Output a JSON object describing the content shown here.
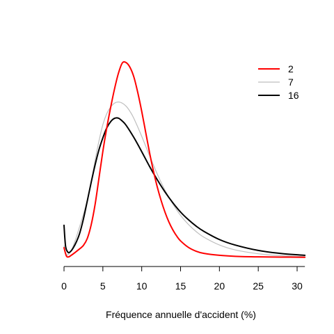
{
  "chart_data": {
    "type": "line",
    "title": "",
    "xlabel": "Fréquence annuelle d'accident (%)",
    "ylabel": "",
    "xlim": [
      0,
      31
    ],
    "ylim": [
      0,
      0.1
    ],
    "y_axis_shown": false,
    "grid": false,
    "legend_position": "top-right",
    "x_ticks": [
      0,
      5,
      10,
      15,
      20,
      25,
      30
    ],
    "series": [
      {
        "name": "2",
        "color": "#ff0000",
        "x": [
          0,
          0.3,
          0.6,
          1,
          1.5,
          2,
          2.5,
          3,
          3.5,
          4,
          4.5,
          5,
          5.5,
          6,
          6.5,
          7,
          7.5,
          8,
          8.5,
          9,
          9.5,
          10,
          10.5,
          11,
          11.5,
          12,
          12.5,
          13,
          13.5,
          14,
          14.5,
          15,
          16,
          17,
          18,
          20,
          22,
          25,
          28,
          31
        ],
        "y": [
          0.005,
          0.0008,
          0.0003,
          0.0013,
          0.0028,
          0.0044,
          0.0062,
          0.0098,
          0.0168,
          0.0272,
          0.0408,
          0.0545,
          0.0665,
          0.077,
          0.0865,
          0.0945,
          0.0998,
          0.1,
          0.0975,
          0.0925,
          0.0845,
          0.075,
          0.0645,
          0.054,
          0.0445,
          0.0362,
          0.0292,
          0.0232,
          0.0182,
          0.0142,
          0.011,
          0.0085,
          0.0052,
          0.0032,
          0.0021,
          0.0011,
          0.0006,
          0.0003,
          0.0002,
          0.0001
        ]
      },
      {
        "name": "7",
        "color": "#bebebe",
        "x": [
          0,
          0.3,
          0.6,
          1,
          1.5,
          2,
          2.5,
          3,
          3.5,
          4,
          4.5,
          5,
          5.5,
          6,
          6.5,
          7,
          7.5,
          8,
          8.5,
          9,
          10,
          11,
          12,
          13,
          14,
          15,
          16,
          17,
          18,
          20,
          22,
          25,
          28,
          31
        ],
        "y": [
          0.006,
          0.0015,
          0.0018,
          0.0041,
          0.0094,
          0.0157,
          0.0222,
          0.0295,
          0.0388,
          0.0498,
          0.0598,
          0.0682,
          0.0738,
          0.0772,
          0.0792,
          0.0798,
          0.0792,
          0.0776,
          0.0749,
          0.0713,
          0.0622,
          0.0523,
          0.0428,
          0.0345,
          0.0275,
          0.0216,
          0.017,
          0.0133,
          0.0104,
          0.0064,
          0.0039,
          0.0019,
          0.0009,
          0.0004
        ]
      },
      {
        "name": "16",
        "color": "#000000",
        "x": [
          0,
          0.2,
          0.5,
          0.8,
          1.2,
          1.6,
          2,
          2.5,
          3,
          3.5,
          4,
          4.5,
          5,
          5.5,
          6,
          6.5,
          7,
          7.5,
          8,
          9,
          10,
          11,
          12,
          13,
          14,
          15,
          16,
          17,
          18,
          20,
          22,
          25,
          28,
          31
        ],
        "y": [
          0.0165,
          0.0058,
          0.0027,
          0.0029,
          0.005,
          0.0081,
          0.0122,
          0.0198,
          0.0291,
          0.0386,
          0.0475,
          0.0553,
          0.0614,
          0.0665,
          0.0697,
          0.0714,
          0.0715,
          0.07,
          0.0678,
          0.0615,
          0.0543,
          0.0468,
          0.0399,
          0.0336,
          0.0281,
          0.0233,
          0.0194,
          0.0161,
          0.0134,
          0.0092,
          0.0064,
          0.0036,
          0.002,
          0.0011
        ]
      }
    ]
  }
}
